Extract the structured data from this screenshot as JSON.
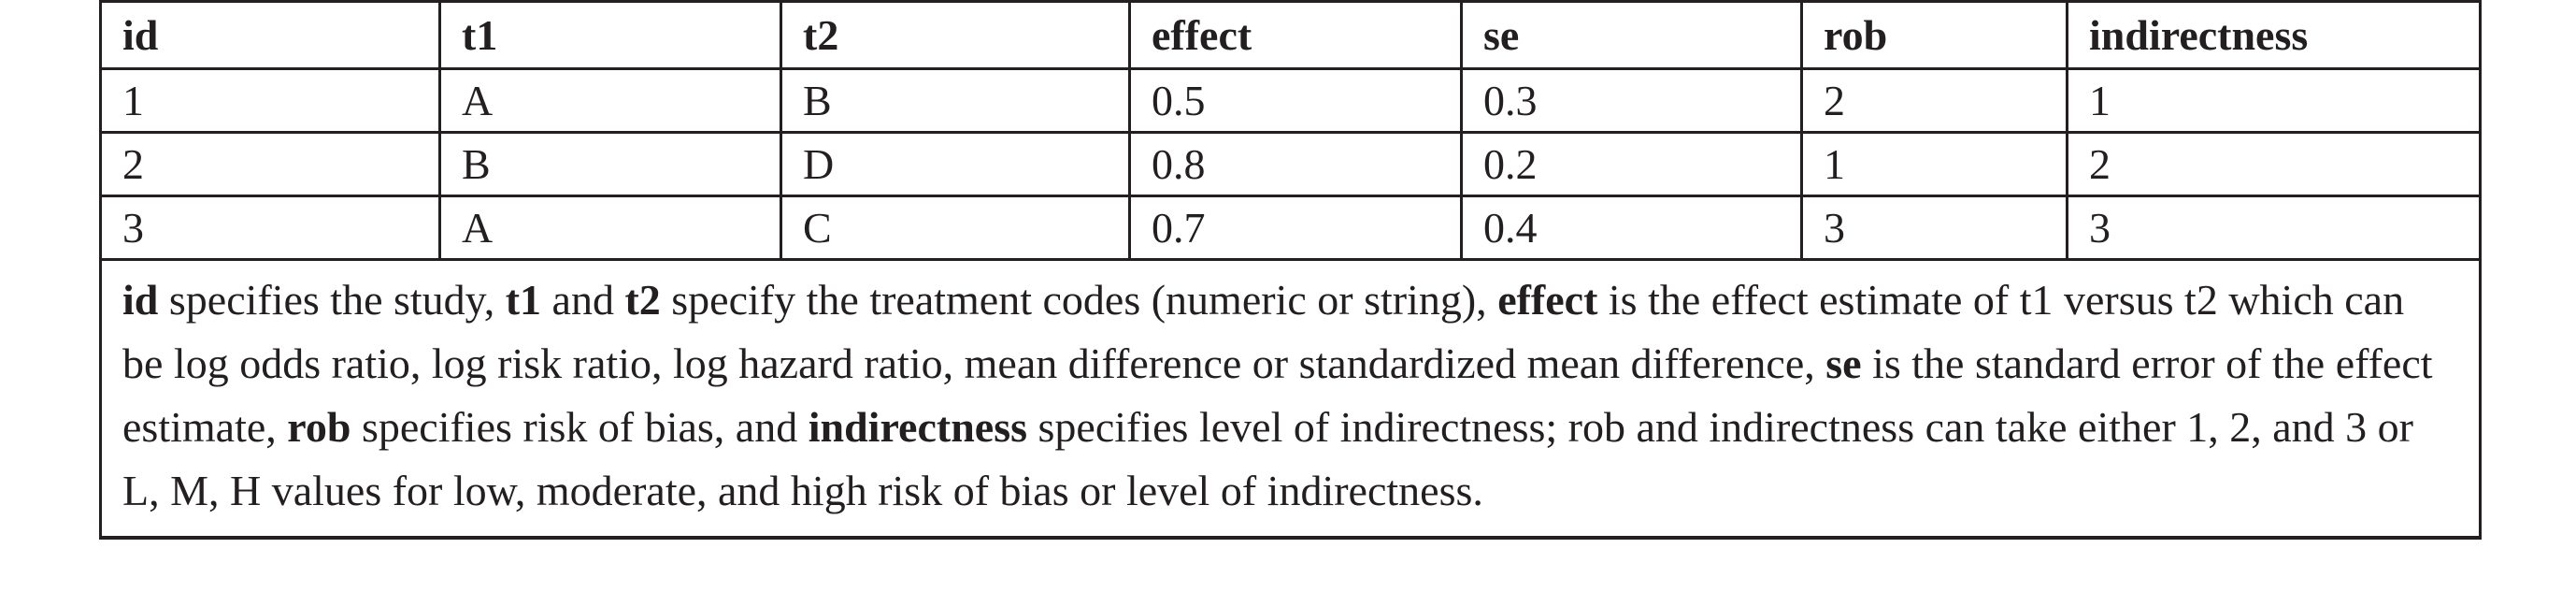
{
  "table": {
    "headers": [
      "id",
      "t1",
      "t2",
      "effect",
      "se",
      "rob",
      "indirectness"
    ],
    "rows": [
      [
        "1",
        "A",
        "B",
        "0.5",
        "0.3",
        "2",
        "1"
      ],
      [
        "2",
        "B",
        "D",
        "0.8",
        "0.2",
        "1",
        "2"
      ],
      [
        "3",
        "A",
        "C",
        "0.7",
        "0.4",
        "3",
        "3"
      ]
    ]
  },
  "note": {
    "id_term": "id",
    "part1": " specifies the study,  ",
    "t1_term": "t1",
    "part2": " and ",
    "t2_term": "t2",
    "part3": " specify the treatment codes (numeric or string), ",
    "effect_term": "effect",
    "part4": " is the effect estimate of t1 versus t2 which can be log odds ratio, log risk ratio, log hazard ratio, mean difference or standardized mean difference,  ",
    "se_term": "se",
    "part5": " is the standard error of the effect estimate,  ",
    "rob_term": "rob",
    "part6": " specifies risk of bias, and  ",
    "indirectness_term": "indirectness",
    "part7": " specifies level of indirectness; rob and indirectness can take either 1, 2, and 3 or L, M, H values for low, moderate, and high risk of bias or level of indirectness."
  }
}
